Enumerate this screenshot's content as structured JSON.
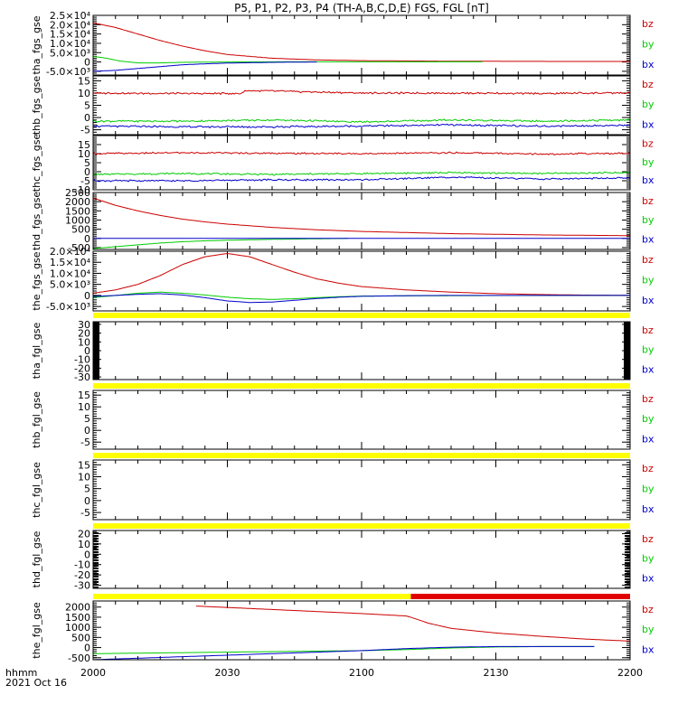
{
  "title": "P5, P1, P2, P3, P4 (TH-A,B,C,D,E) FGS, FGL [nT]",
  "time_axis": {
    "label_line1": "hhmm",
    "label_line2": "2021 Oct 16",
    "ticks": [
      "2000",
      "2030",
      "2100",
      "2130",
      "2200"
    ],
    "range_minutes": [
      0,
      120
    ]
  },
  "legend": [
    {
      "name": "bz",
      "color": "#cc0000"
    },
    {
      "name": "by",
      "color": "#00cc00"
    },
    {
      "name": "bx",
      "color": "#0000cc"
    }
  ],
  "status_bar_colors": {
    "yellow": "#ffff00",
    "red": "#e00000"
  },
  "chart_data": [
    {
      "type": "line",
      "ylabel": "tha_fgs_gse",
      "ylim": [
        -7000,
        25000
      ],
      "ytick_labels": [
        "2.5×10⁴",
        "2.0×10⁴",
        "1.5×10⁴",
        "1.0×10⁴",
        "5.0×10³",
        "0",
        "-5.0×10³"
      ],
      "ytick_values": [
        25000,
        20000,
        15000,
        10000,
        5000,
        0,
        -5000
      ],
      "series": [
        {
          "name": "bz",
          "t": [
            0,
            5,
            10,
            15,
            20,
            25,
            30,
            40,
            50,
            60,
            80,
            100,
            120
          ],
          "values": [
            21000,
            18500,
            15000,
            11500,
            8500,
            6000,
            4000,
            2000,
            1100,
            700,
            400,
            300,
            250
          ]
        },
        {
          "name": "by",
          "t": [
            0,
            3,
            6,
            10,
            15,
            20,
            30,
            50,
            70,
            87
          ],
          "values": [
            3000,
            2000,
            500,
            -500,
            -500,
            -200,
            0,
            100,
            100,
            100
          ]
        },
        {
          "name": "bx",
          "t": [
            0,
            5,
            10,
            15,
            20,
            25,
            30,
            40,
            50
          ],
          "values": [
            -5000,
            -4500,
            -3500,
            -2500,
            -1500,
            -1000,
            -600,
            -200,
            0
          ]
        }
      ]
    },
    {
      "type": "line",
      "ylabel": "thb_fgs_gse",
      "ylim": [
        -7,
        17
      ],
      "ytick_labels": [
        "15",
        "10",
        "5",
        "0",
        "-5"
      ],
      "ytick_values": [
        15,
        10,
        5,
        0,
        -5
      ],
      "series": [
        {
          "name": "bz",
          "t": [
            0,
            20,
            33,
            34,
            40,
            60,
            80,
            100,
            110,
            120
          ],
          "values": [
            10,
            9.8,
            9.8,
            11,
            10.8,
            10,
            10,
            9.8,
            10,
            10
          ]
        },
        {
          "name": "by",
          "t": [
            0,
            20,
            40,
            60,
            80,
            100,
            120
          ],
          "values": [
            -1.5,
            -1.5,
            -1,
            -1.8,
            -1,
            -1.5,
            -1
          ]
        },
        {
          "name": "bx",
          "t": [
            0,
            20,
            40,
            60,
            80,
            100,
            120
          ],
          "values": [
            -3.5,
            -3.8,
            -3.8,
            -3.5,
            -3,
            -3.5,
            -3.2
          ]
        }
      ]
    },
    {
      "type": "line",
      "ylabel": "thc_fgs_gse",
      "ylim": [
        -10,
        20
      ],
      "ytick_labels": [
        "15",
        "10",
        "5",
        "0",
        "-5",
        "-10"
      ],
      "ytick_values": [
        15,
        10,
        5,
        0,
        -5,
        -10
      ],
      "series": [
        {
          "name": "bz",
          "t": [
            0,
            20,
            40,
            60,
            80,
            100,
            120
          ],
          "values": [
            10,
            10.5,
            10.2,
            10,
            10.5,
            9.8,
            10.2
          ]
        },
        {
          "name": "by",
          "t": [
            0,
            20,
            40,
            60,
            80,
            100,
            120
          ],
          "values": [
            -1.5,
            -1,
            -1.5,
            -1,
            -0.5,
            -1,
            -0.5
          ]
        },
        {
          "name": "bx",
          "t": [
            0,
            20,
            40,
            60,
            80,
            100,
            120
          ],
          "values": [
            -5,
            -5,
            -4.5,
            -4.5,
            -3,
            -4,
            -3.5
          ]
        }
      ]
    },
    {
      "type": "line",
      "ylabel": "thd_fgs_gse",
      "ylim": [
        -600,
        2500
      ],
      "ytick_labels": [
        "2500",
        "2000",
        "1500",
        "1000",
        "500",
        "0",
        "-500"
      ],
      "ytick_values": [
        2500,
        2000,
        1500,
        1000,
        500,
        0,
        -500
      ],
      "series": [
        {
          "name": "bz",
          "t": [
            0,
            5,
            10,
            15,
            20,
            25,
            30,
            40,
            50,
            60,
            80,
            100,
            120
          ],
          "values": [
            2200,
            1800,
            1500,
            1250,
            1050,
            900,
            780,
            600,
            470,
            380,
            260,
            190,
            150
          ]
        },
        {
          "name": "by",
          "t": [
            0,
            5,
            10,
            15,
            20,
            25,
            30,
            40,
            50,
            57
          ],
          "values": [
            -550,
            -450,
            -350,
            -250,
            -180,
            -130,
            -100,
            -50,
            -20,
            0
          ]
        },
        {
          "name": "bx",
          "t": [
            0,
            10,
            20,
            30,
            40,
            50,
            60,
            70,
            80,
            90,
            120
          ],
          "values": [
            -2,
            -2,
            -2,
            -2,
            -2,
            -2,
            -2,
            -2,
            -2,
            -2,
            -2
          ]
        }
      ]
    },
    {
      "type": "line",
      "ylabel": "the_fgs_gse",
      "ylim": [
        -7000,
        20000
      ],
      "ytick_labels": [
        "2.0×10⁴",
        "1.5×10⁴",
        "1.0×10⁴",
        "5.0×10³",
        "0",
        "-5.0×10³"
      ],
      "ytick_values": [
        20000,
        15000,
        10000,
        5000,
        0,
        -5000
      ],
      "series": [
        {
          "name": "bz",
          "t": [
            0,
            5,
            10,
            15,
            20,
            25,
            30,
            35,
            40,
            45,
            50,
            55,
            60,
            70,
            80,
            90,
            100,
            110,
            120
          ],
          "values": [
            1000,
            2500,
            5000,
            9000,
            14000,
            17500,
            19000,
            17500,
            14000,
            10500,
            7500,
            5500,
            4000,
            2500,
            1500,
            800,
            400,
            150,
            50
          ]
        },
        {
          "name": "by",
          "t": [
            0,
            5,
            10,
            15,
            20,
            25,
            30,
            35,
            40,
            45,
            50,
            55,
            60,
            80,
            100,
            120
          ],
          "values": [
            -1000,
            0,
            1000,
            1500,
            1000,
            200,
            -800,
            -1500,
            -1800,
            -1500,
            -1000,
            -600,
            -300,
            -100,
            0,
            0
          ]
        },
        {
          "name": "bx",
          "t": [
            0,
            5,
            10,
            15,
            20,
            25,
            30,
            35,
            40,
            45,
            50,
            55,
            60,
            70,
            80,
            90,
            100,
            110,
            120
          ],
          "values": [
            -500,
            0,
            500,
            800,
            200,
            -1000,
            -2500,
            -3200,
            -3000,
            -2200,
            -1400,
            -800,
            -400,
            -100,
            0,
            0,
            0,
            0,
            0
          ]
        }
      ]
    },
    {
      "type": "line",
      "ylabel": "tha_fgl_gse",
      "ylim": [
        -33,
        33
      ],
      "ytick_labels": [
        "30",
        "20",
        "10",
        "0",
        "-10",
        "-20",
        "-30"
      ],
      "ytick_values": [
        30,
        20,
        10,
        0,
        -10,
        -20,
        -30
      ],
      "series": []
    },
    {
      "type": "line",
      "ylabel": "thb_fgl_gse",
      "ylim": [
        -8,
        17
      ],
      "ytick_labels": [
        "15",
        "10",
        "5",
        "0",
        "-5"
      ],
      "ytick_values": [
        15,
        10,
        5,
        0,
        -5
      ],
      "series": []
    },
    {
      "type": "line",
      "ylabel": "thc_fgl_gse",
      "ylim": [
        -8,
        17
      ],
      "ytick_labels": [
        "15",
        "10",
        "5",
        "0",
        "-5"
      ],
      "ytick_values": [
        15,
        10,
        5,
        0,
        -5
      ],
      "series": []
    },
    {
      "type": "line",
      "ylabel": "thd_fgl_gse",
      "ylim": [
        -33,
        23
      ],
      "ytick_labels": [
        "20",
        "10",
        "0",
        "-10",
        "-20",
        "-30"
      ],
      "ytick_values": [
        20,
        10,
        0,
        -10,
        -20,
        -30
      ],
      "series": []
    },
    {
      "type": "line",
      "ylabel": "the_fgl_gse",
      "ylim": [
        -600,
        2300
      ],
      "ytick_labels": [
        "2000",
        "1500",
        "1000",
        "500",
        "0",
        "-500"
      ],
      "ytick_values": [
        2000,
        1500,
        1000,
        500,
        0,
        -500
      ],
      "series": [
        {
          "name": "bz",
          "t": [
            23,
            30,
            40,
            50,
            60,
            70,
            71,
            75,
            80,
            90,
            100,
            110,
            120
          ],
          "values": [
            2050,
            1980,
            1880,
            1780,
            1680,
            1560,
            1500,
            1200,
            950,
            720,
            560,
            420,
            320
          ]
        },
        {
          "name": "by",
          "t": [
            0,
            20,
            40,
            60,
            70,
            80,
            90,
            100,
            112
          ],
          "values": [
            -300,
            -250,
            -200,
            -150,
            -100,
            -20,
            30,
            50,
            50
          ]
        },
        {
          "name": "bx",
          "t": [
            0,
            20,
            40,
            60,
            70,
            80,
            90,
            100,
            112
          ],
          "values": [
            -600,
            -450,
            -300,
            -150,
            -50,
            20,
            50,
            50,
            50
          ]
        }
      ]
    }
  ],
  "status_bars": [
    {
      "segments": []
    },
    {
      "segments": []
    },
    {
      "segments": []
    },
    {
      "segments": []
    },
    {
      "segments": []
    },
    {
      "segments": [
        {
          "color": "yellow",
          "t0": 0,
          "t1": 120
        }
      ]
    },
    {
      "segments": [
        {
          "color": "yellow",
          "t0": 0,
          "t1": 120
        }
      ]
    },
    {
      "segments": [
        {
          "color": "yellow",
          "t0": 0,
          "t1": 120
        }
      ]
    },
    {
      "segments": [
        {
          "color": "yellow",
          "t0": 0,
          "t1": 120
        }
      ]
    },
    {
      "segments": [
        {
          "color": "yellow",
          "t0": 0,
          "t1": 71
        },
        {
          "color": "red",
          "t0": 71,
          "t1": 120
        }
      ]
    }
  ],
  "edge_bars": [
    {
      "side": "none"
    },
    {
      "side": "none"
    },
    {
      "side": "none"
    },
    {
      "side": "none"
    },
    {
      "side": "none"
    },
    {
      "side": "both"
    },
    {
      "side": "none"
    },
    {
      "side": "none"
    },
    {
      "side": "right-dashed"
    },
    {
      "side": "none"
    }
  ]
}
